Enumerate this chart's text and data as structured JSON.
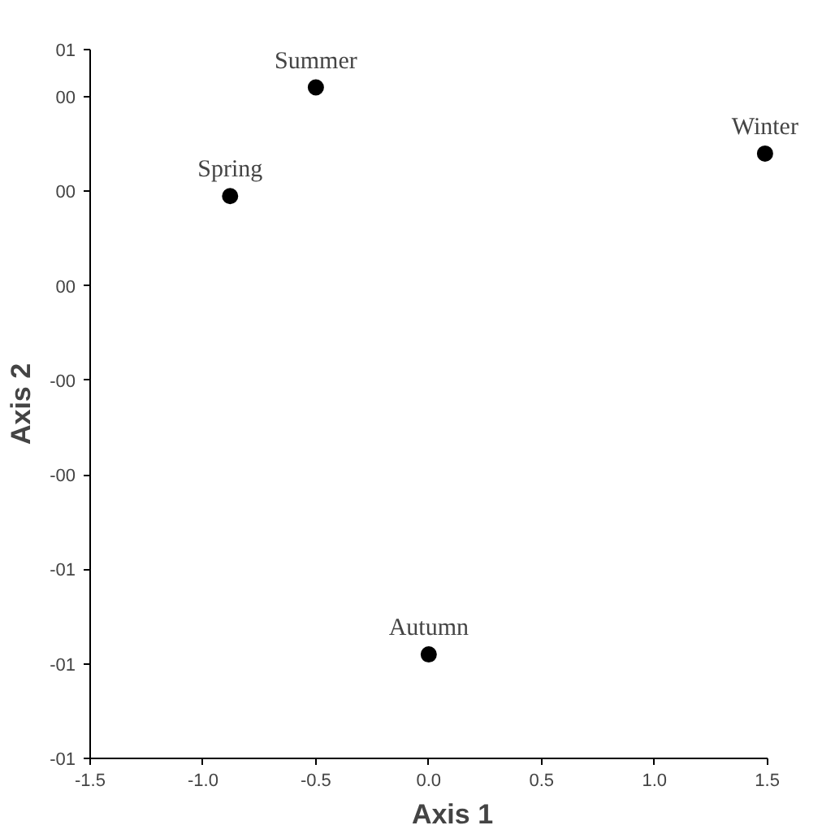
{
  "chart_data": {
    "type": "scatter",
    "xlabel": "Axis 1",
    "ylabel": "Axis 2",
    "x": [
      -0.88,
      -0.5,
      0.0,
      1.49
    ],
    "values": [
      0.24,
      0.47,
      -0.73,
      0.33
    ],
    "color": "#000000",
    "marker": "circle",
    "grid": false,
    "xlim": [
      -1.5,
      1.5
    ],
    "xticks": [
      {
        "value": -1.5,
        "label": "-1.5"
      },
      {
        "value": -1.0,
        "label": "-1.0"
      },
      {
        "value": -0.5,
        "label": "-0.5"
      },
      {
        "value": 0,
        "label": "0.0"
      },
      {
        "value": 0.5,
        "label": "0.5"
      },
      {
        "value": 1.0,
        "label": "1.0"
      },
      {
        "value": 1.5,
        "label": "1.5"
      }
    ],
    "ylim": [
      -0.95,
      0.55
    ],
    "yticks": [
      {
        "value": -0.95,
        "label": "-01"
      },
      {
        "value": -0.75,
        "label": "-01"
      },
      {
        "value": -0.55,
        "label": "-01"
      },
      {
        "value": -0.35,
        "label": "-00"
      },
      {
        "value": -0.15,
        "label": "-00"
      },
      {
        "value": 0.05,
        "label": "00"
      },
      {
        "value": 0.25,
        "label": "00"
      },
      {
        "value": 0.45,
        "label": "00"
      },
      {
        "value": 0.55,
        "label": "01"
      }
    ],
    "annotations": [
      {
        "text": "Spring",
        "x": -0.88,
        "y": 0.24
      },
      {
        "text": "Summer",
        "x": -0.5,
        "y": 0.47
      },
      {
        "text": "Autumn",
        "x": 0.0,
        "y": -0.73
      },
      {
        "text": "Winter",
        "x": 1.49,
        "y": 0.33
      }
    ]
  }
}
